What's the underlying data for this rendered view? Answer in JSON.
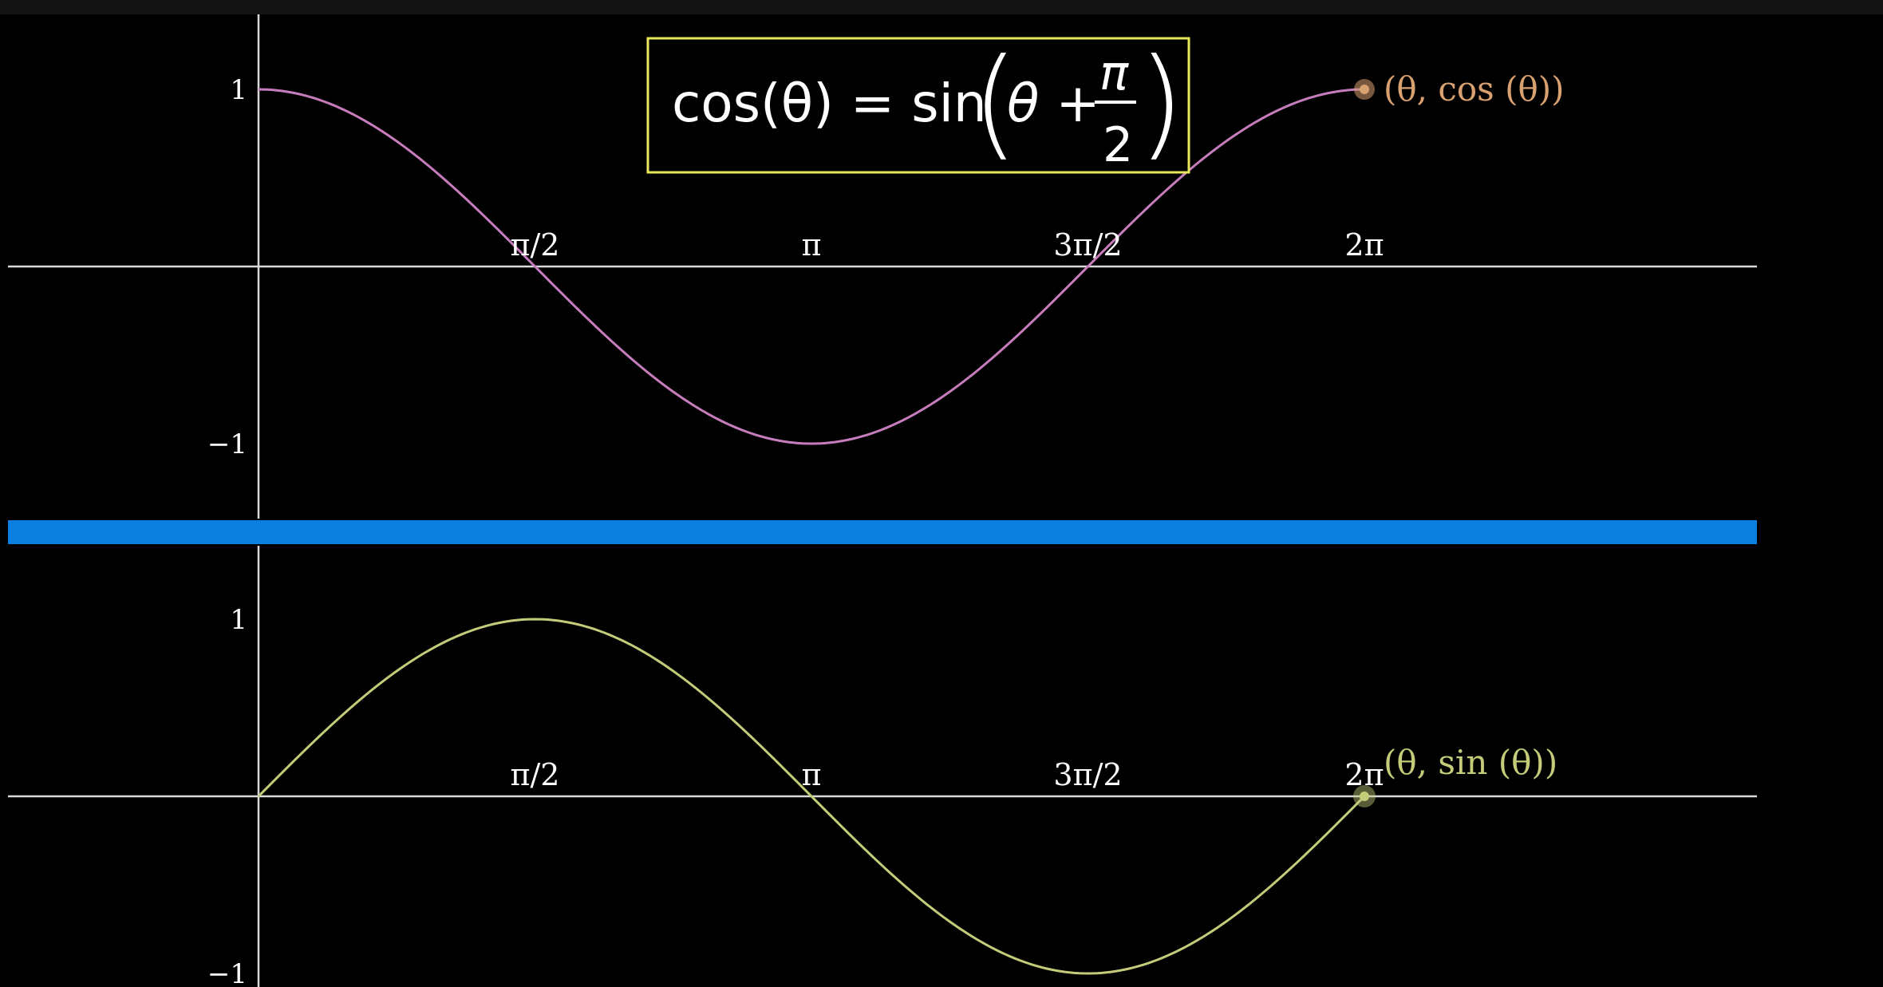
{
  "equation": {
    "lhs": "cos(θ) = sin",
    "theta_plus": "θ +",
    "frac_num": "π",
    "frac_den": "2",
    "border_color": "#e8e85a"
  },
  "divider_color": "#0a7fe0",
  "chart_data": [
    {
      "type": "line",
      "function": "cos",
      "x_range": [
        0,
        6.2832
      ],
      "ylim": [
        -1,
        1
      ],
      "x_ticks": [
        {
          "value": 1.5708,
          "label": "π/2"
        },
        {
          "value": 3.1416,
          "label": "π"
        },
        {
          "value": 4.7124,
          "label": "3π/2"
        },
        {
          "value": 6.2832,
          "label": "2π"
        }
      ],
      "y_ticks": [
        {
          "value": 1,
          "label": "1"
        },
        {
          "value": -1,
          "label": "−1"
        }
      ],
      "series": [
        {
          "color": "#c77dbd",
          "x": [
            0,
            0.7854,
            1.5708,
            2.3562,
            3.1416,
            3.927,
            4.7124,
            5.4978,
            6.2832
          ],
          "y": [
            1,
            0.707,
            0,
            -0.707,
            -1,
            -0.707,
            0,
            0.707,
            1
          ]
        }
      ],
      "point": {
        "x": 6.2832,
        "y": 1,
        "label": "(θ, cos (θ))",
        "color": "#d9a070"
      }
    },
    {
      "type": "line",
      "function": "sin",
      "x_range": [
        0,
        6.2832
      ],
      "ylim": [
        -1,
        1
      ],
      "x_ticks": [
        {
          "value": 1.5708,
          "label": "π/2"
        },
        {
          "value": 3.1416,
          "label": "π"
        },
        {
          "value": 4.7124,
          "label": "3π/2"
        },
        {
          "value": 6.2832,
          "label": "2π"
        }
      ],
      "y_ticks": [
        {
          "value": 1,
          "label": "1"
        },
        {
          "value": -1,
          "label": "−1"
        }
      ],
      "series": [
        {
          "color": "#c4cc7a",
          "x": [
            0,
            0.7854,
            1.5708,
            2.3562,
            3.1416,
            3.927,
            4.7124,
            5.4978,
            6.2832
          ],
          "y": [
            0,
            0.707,
            1,
            0.707,
            0,
            -0.707,
            -1,
            -0.707,
            0
          ]
        }
      ],
      "point": {
        "x": 6.2832,
        "y": 0,
        "label": "(θ, sin (θ))",
        "color": "#c4cc7a"
      }
    }
  ]
}
